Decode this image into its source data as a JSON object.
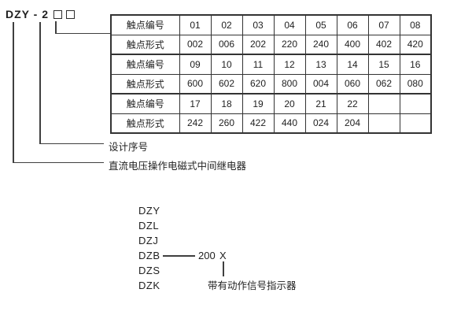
{
  "model_header": {
    "prefix": "DZY - 2",
    "placeholder_squares": 2
  },
  "table": {
    "rows": [
      {
        "label": "触点编号",
        "values": [
          "01",
          "02",
          "03",
          "04",
          "05",
          "06",
          "07",
          "08"
        ]
      },
      {
        "label": "触点形式",
        "values": [
          "002",
          "006",
          "202",
          "220",
          "240",
          "400",
          "402",
          "420"
        ]
      },
      {
        "label": "触点编号",
        "values": [
          "09",
          "10",
          "11",
          "12",
          "13",
          "14",
          "15",
          "16"
        ]
      },
      {
        "label": "触点形式",
        "values": [
          "600",
          "602",
          "620",
          "800",
          "004",
          "060",
          "062",
          "080"
        ]
      },
      {
        "label": "触点编号",
        "values": [
          "17",
          "18",
          "19",
          "20",
          "21",
          "22",
          "",
          ""
        ]
      },
      {
        "label": "触点形式",
        "values": [
          "242",
          "260",
          "422",
          "440",
          "024",
          "204",
          "",
          ""
        ]
      }
    ]
  },
  "callouts": {
    "design_serial": "设计序号",
    "relay_description": "直流电压操作电磁式中间继电器"
  },
  "model_list": {
    "items": [
      "DZY",
      "DZL",
      "DZJ",
      "DZB",
      "DZS",
      "DZK"
    ],
    "dzb_suffix_number": "200",
    "dzb_suffix_variant": "X",
    "indicator_label": "带有动作信号指示器"
  },
  "colors": {
    "text": "#1f1f1f",
    "line": "#3f3f3f",
    "table_border": "#333333",
    "background": "#ffffff"
  }
}
